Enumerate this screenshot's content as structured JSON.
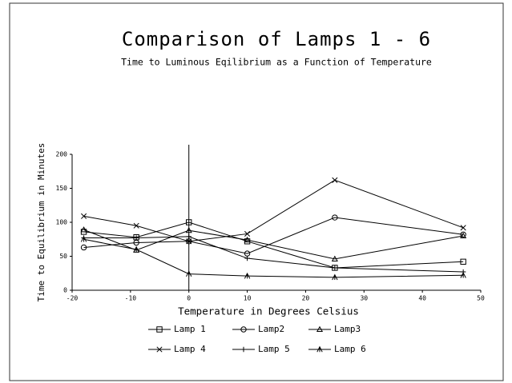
{
  "chart_data": {
    "type": "line",
    "title": "Comparison of Lamps 1 - 6",
    "subtitle": "Time to Luminous Eqilibrium as a Function of Temperature",
    "x_label": "Temperature in Degrees Celsius",
    "y_label": "Time to Equilibrium in Minutes",
    "x": [
      -18,
      -9,
      0,
      10,
      25,
      47
    ],
    "series": [
      {
        "name": "Lamp 1",
        "color": "#000000",
        "marker": "square",
        "values": [
          86,
          78,
          100,
          72,
          33,
          42
        ]
      },
      {
        "name": "Lamp2",
        "color": "#000000",
        "marker": "circle",
        "values": [
          63,
          70,
          72,
          54,
          107,
          82
        ]
      },
      {
        "name": "Lamp3",
        "color": "#000000",
        "marker": "triangle",
        "values": [
          89,
          59,
          88,
          74,
          46,
          80
        ]
      },
      {
        "name": "Lamp 4",
        "color": "#000000",
        "marker": "x",
        "values": [
          109,
          95,
          72,
          83,
          162,
          92
        ]
      },
      {
        "name": "Lamp 5",
        "color": "#000000",
        "marker": "plus",
        "values": [
          77,
          77,
          79,
          47,
          33,
          27
        ]
      },
      {
        "name": "Lamp 6",
        "color": "#000000",
        "marker": "star",
        "values": [
          75,
          60,
          24,
          21,
          19,
          22
        ]
      }
    ],
    "xlim": [
      -20,
      50
    ],
    "xticks": [
      -20,
      -10,
      0,
      10,
      20,
      30,
      40,
      50
    ],
    "ylim": [
      0,
      200
    ],
    "yticks": [
      0,
      50,
      100,
      150,
      200
    ],
    "zero_line": true,
    "grid": false,
    "legend": "bottom"
  }
}
